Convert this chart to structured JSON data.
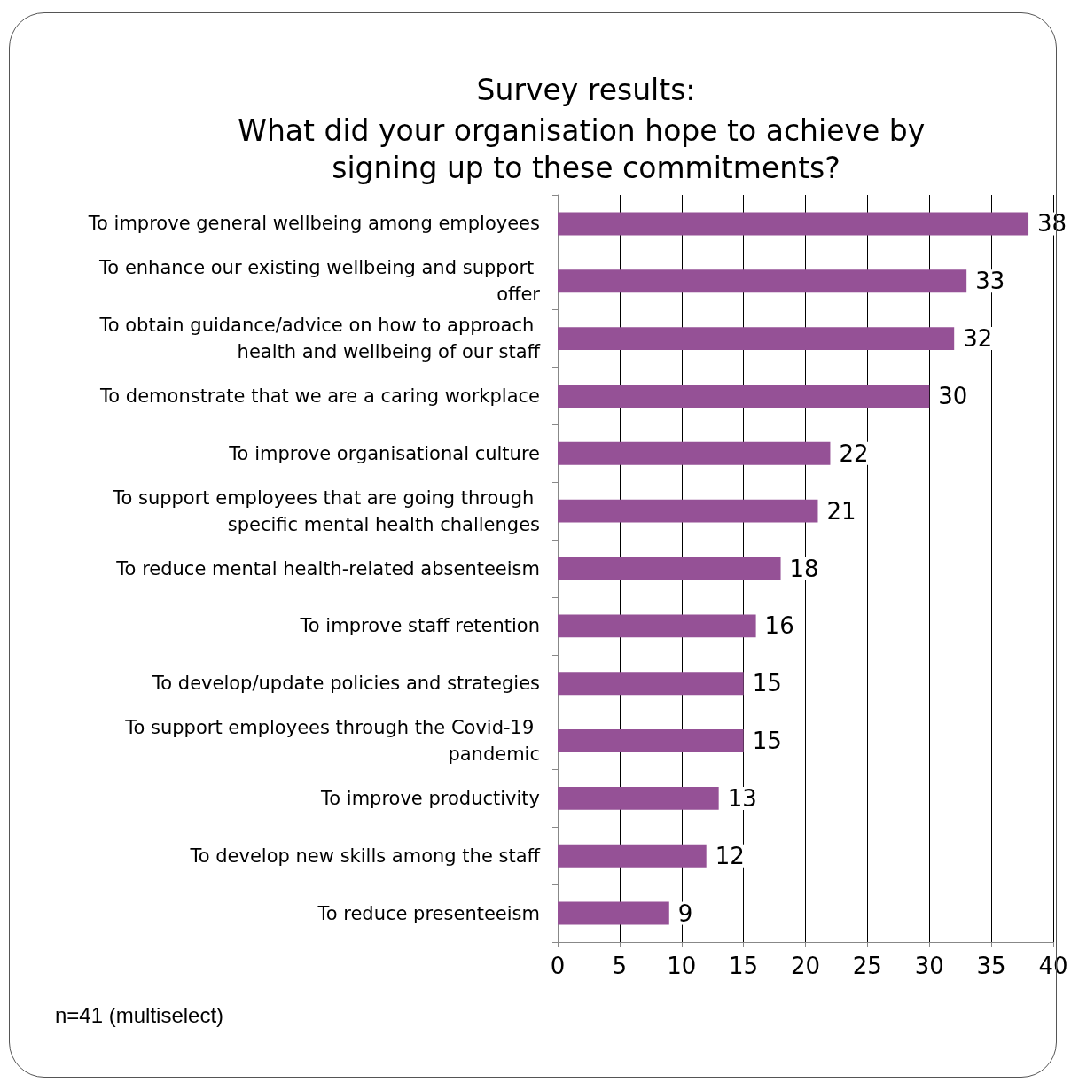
{
  "chart_data": {
    "type": "bar",
    "orientation": "horizontal",
    "title": "Survey results:",
    "subtitle": "What did your organisation hope to achieve by signing up to these commitments?",
    "categories": [
      "To improve general wellbeing among employees",
      "To enhance our existing wellbeing and support offer",
      "To obtain guidance/advice on how to approach health and wellbeing of our staff",
      "To demonstrate that we are a caring workplace",
      "To improve organisational culture",
      "To support employees that are going through specific mental health challenges",
      "To reduce mental health-related absenteeism",
      "To improve staff retention",
      "To develop/update policies and strategies",
      "To support employees through the Covid-19 pandemic",
      "To improve productivity",
      "To develop new skills among the staff",
      "To reduce presenteeism"
    ],
    "values": [
      38,
      33,
      32,
      30,
      22,
      21,
      18,
      16,
      15,
      15,
      13,
      12,
      9
    ],
    "color": "#955196",
    "xlim": [
      0,
      40
    ],
    "xticks": [
      0,
      5,
      10,
      15,
      20,
      25,
      30,
      35,
      40
    ],
    "grid": "x",
    "data_labels": true,
    "annotations": [
      "n=41 (multiselect)"
    ]
  }
}
